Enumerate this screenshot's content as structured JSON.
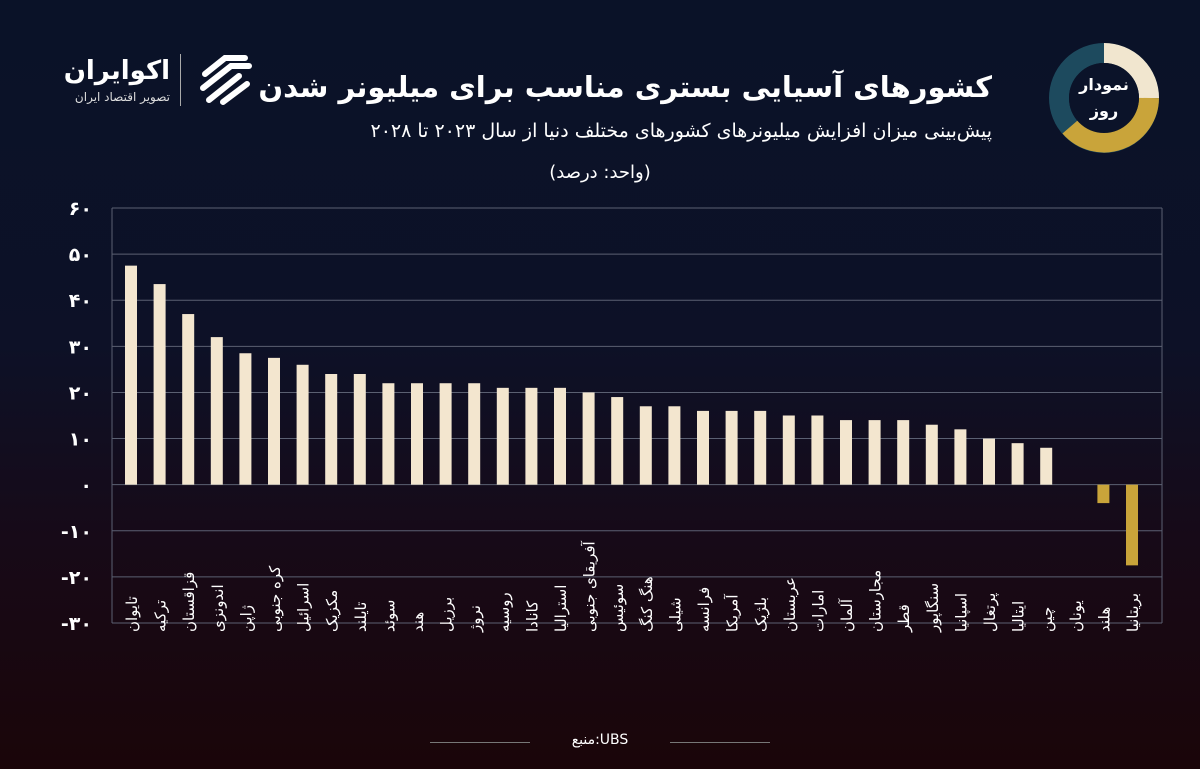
{
  "header": {
    "title": "کشورهای آسیایی بستری مناسب برای میلیونر شدن",
    "subtitle": "پیش‌بینی میزان افزایش میلیونرهای کشورهای مختلف دنیا از سال ۲۰۲۳ تا ۲۰۲۸",
    "unit": "(واحد: درصد)"
  },
  "logo": {
    "name": "اکوایران",
    "tagline": "تصویر اقتصاد ایران"
  },
  "badge": {
    "line1": "نمودار",
    "line2": "روز"
  },
  "source": "منبع:UBS",
  "colors": {
    "positive": "#f3e6cf",
    "negative": "#c9a43a",
    "grid": "#5b6072"
  },
  "chart_data": {
    "type": "bar",
    "ylim": [
      -30,
      60
    ],
    "yticks": [
      60,
      50,
      40,
      30,
      20,
      10,
      0,
      -10,
      -20,
      -30
    ],
    "ytick_labels": [
      "۶۰",
      "۵۰",
      "۴۰",
      "۳۰",
      "۲۰",
      "۱۰",
      "۰",
      "-۱۰",
      "-۲۰",
      "-۳۰"
    ],
    "grid": true,
    "categories": [
      "تایوان",
      "ترکیه",
      "قزاقستان",
      "اندونزی",
      "ژاپن",
      "کره جنوبی",
      "اسرائیل",
      "مکزیک",
      "تایلند",
      "سوئد",
      "هند",
      "برزیل",
      "نروژ",
      "روسیه",
      "کانادا",
      "استرالیا",
      "آفریقای جنوبی",
      "سوئیس",
      "هنگ کنگ",
      "شیلی",
      "فرانسه",
      "آمریکا",
      "بلژیک",
      "عربستان",
      "امارات",
      "آلمان",
      "مجارستان",
      "قطر",
      "سنگاپور",
      "اسپانیا",
      "پرتغال",
      "ایتالیا",
      "چین",
      "یونان",
      "هلند",
      "بریتانیا"
    ],
    "values": [
      47.5,
      43.5,
      37,
      32,
      28.5,
      27.5,
      26,
      24,
      24,
      22,
      22,
      22,
      22,
      21,
      21,
      21,
      20,
      19,
      17,
      17,
      16,
      16,
      16,
      15,
      15,
      14,
      14,
      14,
      13,
      12,
      10,
      9,
      8,
      0,
      -4,
      -17.5
    ]
  }
}
